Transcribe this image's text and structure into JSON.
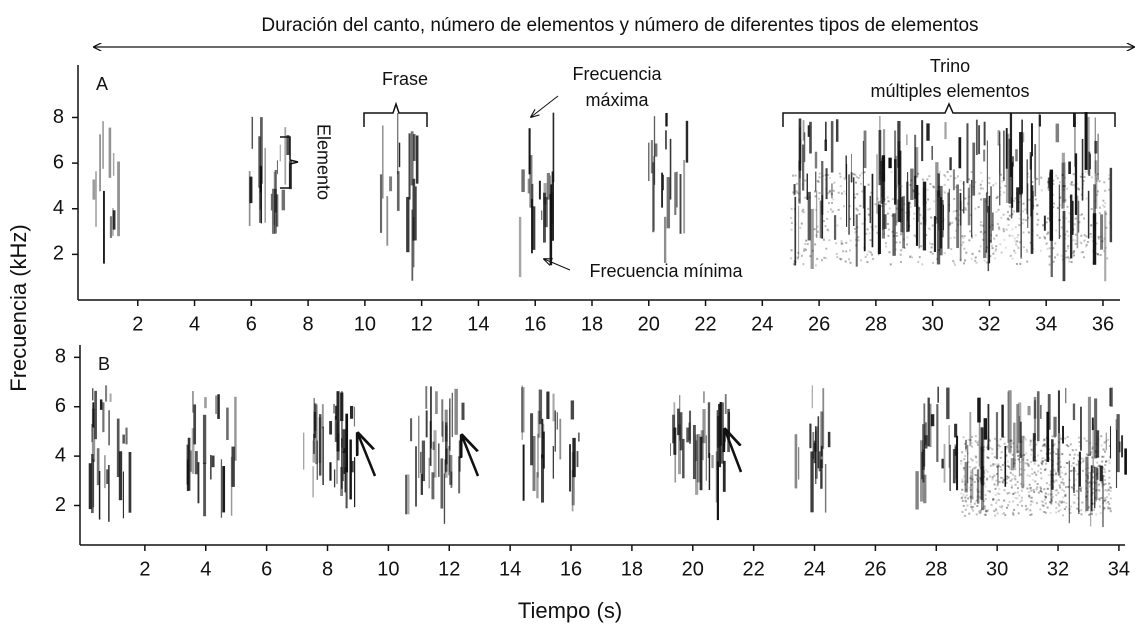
{
  "title": "Duración del canto, número de elementos y número de diferentes tipos de elementos",
  "y_label": "Frecuencia (kHz)",
  "x_label": "Tiempo (s)",
  "chart_data": [
    {
      "type": "spectrogram",
      "panel_label": "A",
      "xlim": [
        0,
        36.6
      ],
      "ylim": [
        0,
        10.3
      ],
      "xticks": [
        2,
        4,
        6,
        8,
        10,
        12,
        14,
        16,
        18,
        20,
        22,
        24,
        26,
        28,
        30,
        32,
        34,
        36
      ],
      "yticks": [
        2,
        4,
        6,
        8
      ],
      "annotations": [
        "Frase",
        "Frecuencia",
        "máxima",
        "Frecuencia mínima",
        "Elemento",
        "Trino",
        "múltiples elementos"
      ]
    },
    {
      "type": "spectrogram",
      "panel_label": "B",
      "xlim": [
        0,
        34.2
      ],
      "ylim": [
        0.4,
        8.5
      ],
      "xticks": [
        2,
        4,
        6,
        8,
        10,
        12,
        14,
        16,
        18,
        20,
        22,
        24,
        26,
        28,
        30,
        32,
        34
      ],
      "yticks": [
        2,
        4,
        6,
        8
      ]
    }
  ]
}
